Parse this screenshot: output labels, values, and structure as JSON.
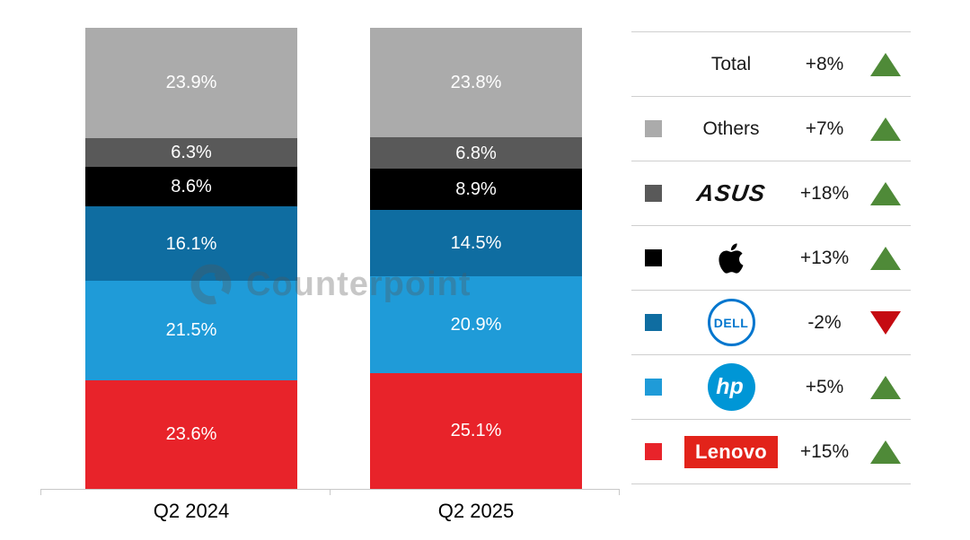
{
  "watermark": {
    "text": "Counterpoint"
  },
  "theme": {
    "up_color": "#4F8A38",
    "down_color": "#C50A11",
    "separator_color": "#CFCFCF",
    "axis_line_color": "#C8C8C8",
    "bar_label_color": "#FFFFFF",
    "legend_text_color": "#1A1A1A"
  },
  "chart_data": {
    "type": "bar",
    "subtype": "stacked-100-percent",
    "title": "",
    "categories": [
      "Q2 2024",
      "Q2 2025"
    ],
    "unit": "%",
    "ylim": [
      0,
      100
    ],
    "grid": false,
    "legend_position": "right",
    "stack_order": "bottom-to-top",
    "total_label": "Total",
    "total_yoy_change": "+8%",
    "total_direction": "up",
    "series": [
      {
        "name": "Lenovo",
        "logo_text": "Lenovo",
        "color": "#E8232A",
        "values": [
          23.6,
          25.1
        ],
        "yoy_change": "+15%",
        "direction": "up"
      },
      {
        "name": "HP",
        "logo_text": "hp",
        "color": "#1F9BD8",
        "values": [
          21.5,
          20.9
        ],
        "yoy_change": "+5%",
        "direction": "up"
      },
      {
        "name": "Dell",
        "logo_text": "DELL",
        "color": "#0F6DA1",
        "values": [
          16.1,
          14.5
        ],
        "yoy_change": "-2%",
        "direction": "down"
      },
      {
        "name": "Apple",
        "logo_text": "",
        "color": "#000000",
        "values": [
          8.6,
          8.9
        ],
        "yoy_change": "+13%",
        "direction": "up"
      },
      {
        "name": "ASUS",
        "logo_text": "ASUS",
        "color": "#595959",
        "values": [
          6.3,
          6.8
        ],
        "yoy_change": "+18%",
        "direction": "up"
      },
      {
        "name": "Others",
        "logo_text": "",
        "color": "#ABABAB",
        "values": [
          23.9,
          23.8
        ],
        "yoy_change": "+7%",
        "direction": "up"
      }
    ],
    "logo_colors": {
      "asus_black": "#111111",
      "apple_black": "#000000",
      "dell_blue": "#0076CE",
      "hp_blue": "#0096D6",
      "lenovo_red": "#E2231A"
    }
  }
}
